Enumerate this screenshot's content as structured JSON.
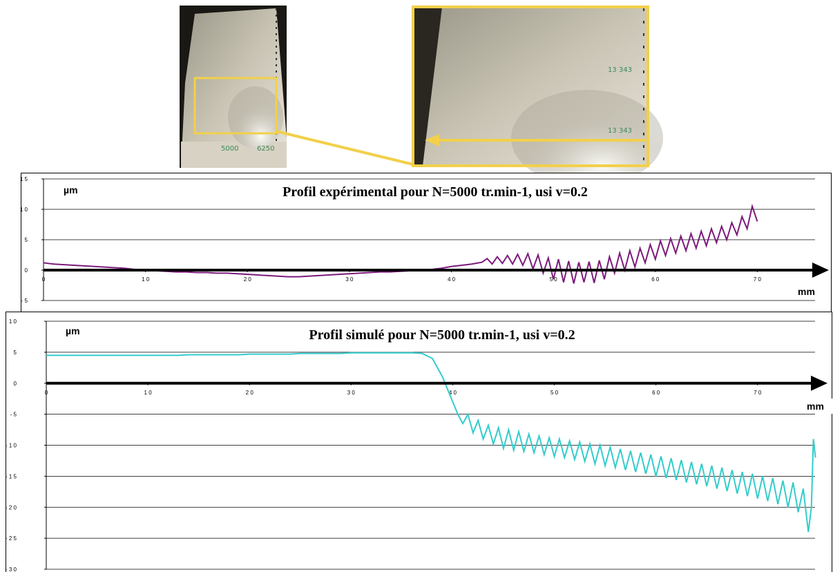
{
  "chart_data": [
    {
      "type": "line",
      "title": "Profil expérimental pour N=5000 tr.min-1, usi  v=0.2",
      "y_label": "µm",
      "x_label": "mm",
      "color": "#7b1a7b",
      "xlim": [
        0,
        76
      ],
      "ylim": [
        -5,
        15
      ],
      "grid": true,
      "xticks": [
        0,
        {
          "value": 10,
          "label": "1 0"
        },
        {
          "value": 20,
          "label": "2 0"
        },
        {
          "value": 30,
          "label": "3 0"
        },
        {
          "value": 40,
          "label": "4 0"
        },
        {
          "value": 50,
          "label": "5 0"
        },
        {
          "value": 60,
          "label": "6 0"
        },
        {
          "value": 70,
          "label": "7 0"
        }
      ],
      "yticks": [
        {
          "value": 15,
          "label": "1 5"
        },
        {
          "value": 10,
          "label": "1 0"
        },
        5,
        0,
        {
          "value": -5,
          "label": "- 5"
        }
      ],
      "x": [
        0,
        1,
        2,
        3,
        4,
        5,
        6,
        7,
        8,
        9,
        10,
        11,
        12,
        13,
        14,
        15,
        16,
        17,
        18,
        19,
        20,
        21,
        22,
        23,
        24,
        25,
        26,
        27,
        28,
        29,
        30,
        31,
        32,
        33,
        34,
        35,
        36,
        37,
        38,
        39,
        40,
        41,
        42,
        43,
        43.5,
        44,
        44.5,
        45,
        45.5,
        46,
        46.5,
        47,
        47.5,
        48,
        48.5,
        49,
        49.5,
        50,
        50.5,
        51,
        51.5,
        52,
        52.5,
        53,
        53.5,
        54,
        54.5,
        55,
        55.5,
        56,
        56.5,
        57,
        57.5,
        58,
        58.5,
        59,
        59.5,
        60,
        60.5,
        61,
        61.5,
        62,
        62.5,
        63,
        63.5,
        64,
        64.5,
        65,
        65.5,
        66,
        66.5,
        67,
        67.5,
        68,
        68.5,
        69,
        69.5,
        70
      ],
      "values": [
        1.2,
        1.0,
        0.9,
        0.8,
        0.7,
        0.6,
        0.5,
        0.4,
        0.3,
        0.1,
        0,
        -0.1,
        -0.2,
        -0.3,
        -0.3,
        -0.4,
        -0.4,
        -0.5,
        -0.5,
        -0.6,
        -0.7,
        -0.8,
        -0.9,
        -1.0,
        -1.1,
        -1.1,
        -1.0,
        -0.9,
        -0.8,
        -0.7,
        -0.6,
        -0.5,
        -0.4,
        -0.3,
        -0.3,
        -0.2,
        -0.1,
        0,
        0.1,
        0.3,
        0.6,
        0.8,
        1.0,
        1.3,
        1.9,
        1.0,
        2.2,
        1.1,
        2.4,
        1.0,
        2.6,
        0.8,
        2.7,
        0.2,
        2.5,
        -0.5,
        2.0,
        -1.5,
        1.8,
        -2.0,
        1.5,
        -2.2,
        1.3,
        -2.0,
        1.4,
        -2.1,
        1.6,
        -1.5,
        2.2,
        -0.5,
        2.8,
        0.0,
        3.2,
        0.5,
        3.6,
        1.2,
        4.2,
        1.8,
        4.8,
        2.4,
        5.2,
        2.8,
        5.6,
        3.2,
        6.0,
        3.6,
        6.4,
        4.0,
        6.8,
        4.5,
        7.2,
        5.0,
        7.8,
        5.8,
        8.8,
        6.8,
        10.5,
        8.0
      ]
    },
    {
      "type": "line",
      "title": "Profil simulé pour N=5000 tr.min-1, usi  v=0.2",
      "y_label": "µm",
      "x_label": "mm",
      "color": "#33cccc",
      "xlim": [
        0,
        76
      ],
      "ylim": [
        -30,
        10
      ],
      "grid": true,
      "xticks": [
        0,
        {
          "value": 10,
          "label": "1 0"
        },
        {
          "value": 20,
          "label": "2 0"
        },
        {
          "value": 30,
          "label": "3 0"
        },
        {
          "value": 40,
          "label": "4 0"
        },
        {
          "value": 50,
          "label": "5 0"
        },
        {
          "value": 60,
          "label": "6 0"
        },
        {
          "value": 70,
          "label": "7 0"
        }
      ],
      "yticks": [
        {
          "value": 10,
          "label": "1 0"
        },
        5,
        0,
        {
          "value": -5,
          "label": "- 5"
        },
        {
          "value": -10,
          "label": "- 1 0"
        },
        {
          "value": -15,
          "label": "- 1 5"
        },
        {
          "value": -20,
          "label": "- 2 0"
        },
        {
          "value": -25,
          "label": "- 2 5"
        },
        {
          "value": -30,
          "label": "- 3 0"
        }
      ],
      "x": [
        0,
        1,
        2,
        3,
        4,
        5,
        6,
        7,
        8,
        9,
        10,
        11,
        12,
        13,
        14,
        15,
        16,
        17,
        18,
        19,
        20,
        21,
        22,
        23,
        24,
        25,
        26,
        27,
        28,
        29,
        30,
        31,
        32,
        33,
        34,
        35,
        36,
        37,
        38,
        38.5,
        39,
        39.5,
        40,
        40.5,
        41,
        41.5,
        42,
        42.5,
        43,
        43.5,
        44,
        44.5,
        45,
        45.5,
        46,
        46.5,
        47,
        47.5,
        48,
        48.5,
        49,
        49.5,
        50,
        50.5,
        51,
        51.5,
        52,
        52.5,
        53,
        53.5,
        54,
        54.5,
        55,
        55.5,
        56,
        56.5,
        57,
        57.5,
        58,
        58.5,
        59,
        59.5,
        60,
        60.5,
        61,
        61.5,
        62,
        62.5,
        63,
        63.5,
        64,
        64.5,
        65,
        65.5,
        66,
        66.5,
        67,
        67.5,
        68,
        68.5,
        69,
        69.5,
        70,
        70.5,
        71,
        71.5,
        72,
        72.5,
        73,
        73.5,
        74,
        74.5,
        75,
        75.3,
        75.5,
        75.7
      ],
      "values": [
        4.5,
        4.5,
        4.5,
        4.5,
        4.5,
        4.5,
        4.5,
        4.5,
        4.5,
        4.5,
        4.5,
        4.5,
        4.5,
        4.5,
        4.6,
        4.6,
        4.6,
        4.6,
        4.6,
        4.6,
        4.7,
        4.7,
        4.7,
        4.7,
        4.7,
        4.8,
        4.8,
        4.8,
        4.8,
        4.8,
        4.9,
        4.9,
        4.9,
        4.9,
        4.9,
        4.9,
        4.9,
        4.8,
        4.0,
        2.5,
        1.0,
        -1.0,
        -3.0,
        -5.0,
        -6.5,
        -5.0,
        -8.0,
        -6.0,
        -9.0,
        -6.8,
        -9.8,
        -7.2,
        -10.5,
        -7.5,
        -10.8,
        -7.8,
        -11.0,
        -8.2,
        -11.2,
        -8.5,
        -11.5,
        -8.8,
        -11.8,
        -9.0,
        -12.0,
        -9.3,
        -12.3,
        -9.5,
        -12.6,
        -9.8,
        -13.0,
        -10.0,
        -13.3,
        -10.3,
        -13.6,
        -10.6,
        -14.0,
        -10.9,
        -14.3,
        -11.2,
        -14.6,
        -11.5,
        -15.0,
        -11.8,
        -15.3,
        -12.1,
        -15.6,
        -12.4,
        -16.0,
        -12.7,
        -16.3,
        -13.0,
        -16.6,
        -13.3,
        -17.0,
        -13.6,
        -17.4,
        -14.0,
        -17.8,
        -14.3,
        -18.2,
        -14.6,
        -18.6,
        -15.0,
        -19.0,
        -15.3,
        -19.5,
        -15.7,
        -20.0,
        -16.0,
        -20.8,
        -17.0,
        -24,
        -20,
        -9,
        -12
      ]
    }
  ],
  "photos": {
    "left_labels": [
      "5000",
      "6250"
    ],
    "right_labels": [
      "13 343",
      "13 343"
    ]
  }
}
